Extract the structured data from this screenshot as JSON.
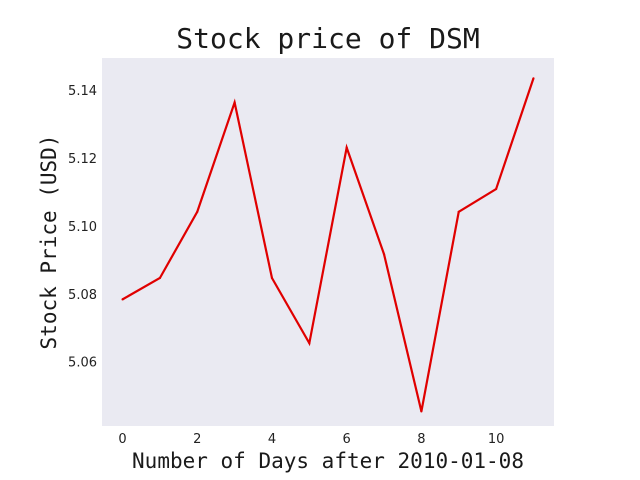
{
  "chart_data": {
    "type": "line",
    "title": "Stock price of DSM",
    "xlabel": "Number of Days after 2010-01-08",
    "ylabel": "Stock Price (USD)",
    "x": [
      0,
      1,
      2,
      3,
      4,
      5,
      6,
      7,
      8,
      9,
      10,
      11
    ],
    "series": [
      {
        "values": [
          5.0785,
          5.0848,
          5.1043,
          5.1365,
          5.0848,
          5.0656,
          5.1232,
          5.0918,
          5.0455,
          5.1043,
          5.111,
          5.1436
        ],
        "color": "#e00000"
      }
    ],
    "xlim": [
      -0.55,
      11.55
    ],
    "ylim": [
      5.0412,
      5.1496
    ],
    "x_ticks": [
      0,
      2,
      4,
      6,
      8,
      10
    ],
    "y_ticks": [
      5.06,
      5.08,
      5.1,
      5.12,
      5.14
    ],
    "x_tick_labels": [
      "0",
      "2",
      "4",
      "6",
      "8",
      "10"
    ],
    "y_tick_labels": [
      "5.06",
      "5.08",
      "5.10",
      "5.12",
      "5.14"
    ],
    "grid": false,
    "plot_background": "#eaeaf2"
  }
}
